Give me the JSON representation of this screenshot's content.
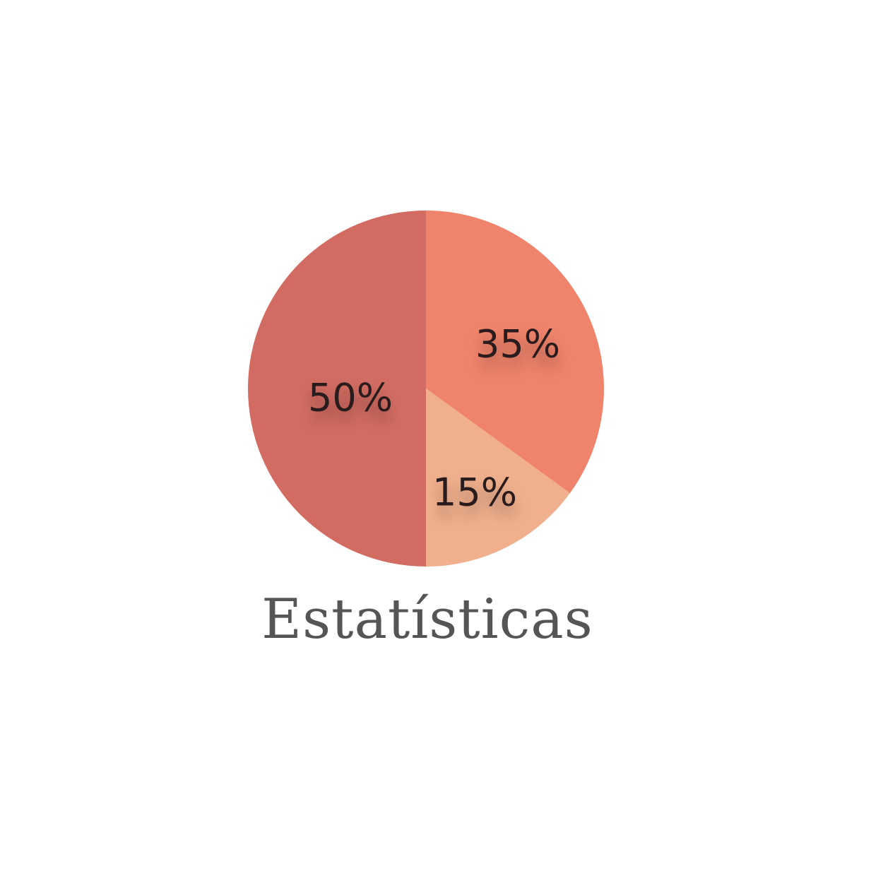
{
  "chart_data": {
    "type": "pie",
    "title": "Estatísticas",
    "slices": [
      {
        "label": "35%",
        "value": 35,
        "color": "#f0836b"
      },
      {
        "label": "15%",
        "value": 15,
        "color": "#f0b08d"
      },
      {
        "label": "50%",
        "value": 50,
        "color": "#d26c62"
      }
    ],
    "start_angle_deg": 0,
    "direction": "clockwise",
    "legend": "none"
  }
}
